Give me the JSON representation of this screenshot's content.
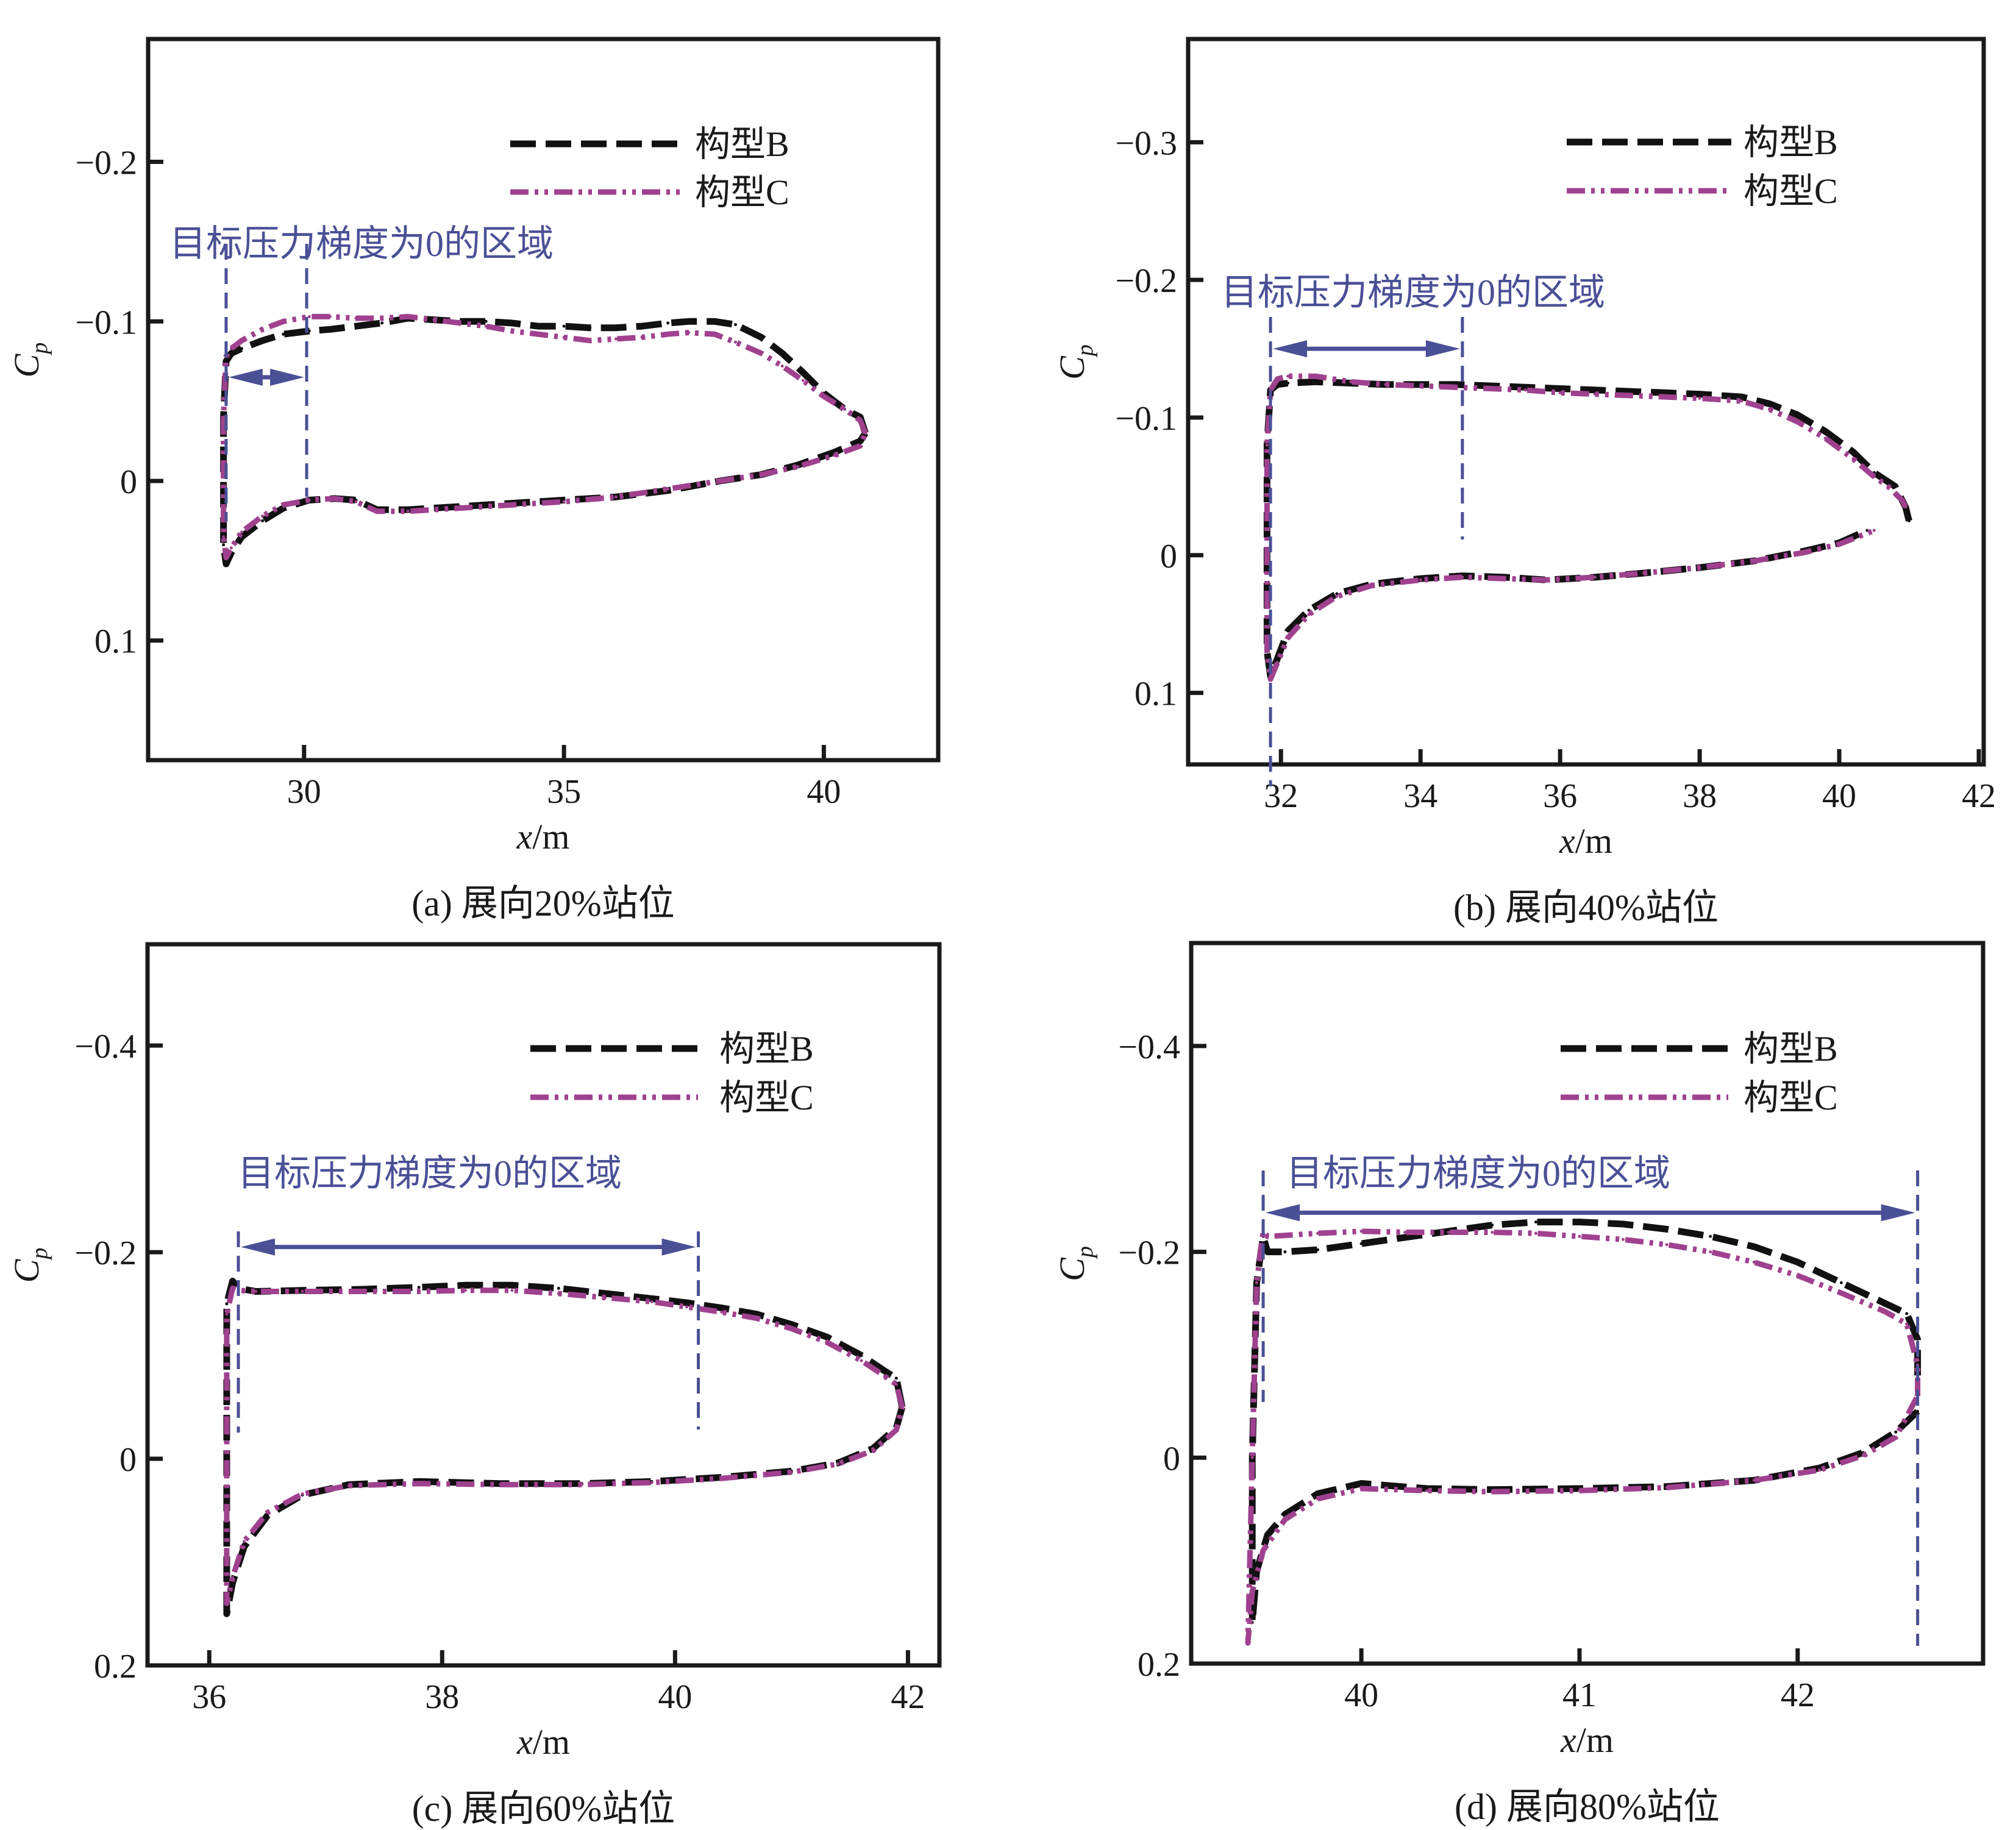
{
  "figure_title": "",
  "legend": {
    "series_b": "构型B",
    "series_c": "构型C"
  },
  "colors": {
    "series_b": "#111111",
    "series_c": "#a0418f",
    "annotation": "#4a5096",
    "axis": "#1a1a1a"
  },
  "chart_data": [
    {
      "type": "line",
      "panel": "a",
      "caption": "(a) 展向20%站位",
      "xlabel": "x/m",
      "ylabel": "Cp",
      "xlim": [
        27.0,
        42.2
      ],
      "ylim": [
        0.175,
        -0.277
      ],
      "y_inverted": true,
      "xticks": [
        30,
        35,
        40
      ],
      "xtick_labels": [
        "30",
        "35",
        "40"
      ],
      "yticks": [
        -0.2,
        -0.1,
        0,
        0.1
      ],
      "ytick_labels": [
        "−0.2",
        "−0.1",
        "0",
        "0.1"
      ],
      "legend_position": "top-right",
      "grid": false,
      "annotation": {
        "text": "目标压力梯度为0的区域",
        "x_start": 28.5,
        "x_end": 30.05,
        "arrow_cp": -0.065
      },
      "series": [
        {
          "name": "构型B",
          "style": "dashed",
          "x": [
            40.8,
            40.7,
            40.4,
            40.0,
            39.6,
            39.2,
            38.8,
            38.3,
            37.9,
            37.4,
            37.0,
            36.5,
            36.0,
            35.5,
            35.0,
            34.5,
            34.0,
            33.5,
            33.0,
            32.5,
            32.0,
            31.5,
            31.0,
            30.5,
            30.1,
            29.6,
            29.2,
            28.8,
            28.6,
            28.5,
            28.45,
            28.45,
            28.5,
            28.6,
            28.8,
            29.2,
            29.6,
            30.1,
            30.6,
            31.0,
            31.4,
            32.0,
            33.0,
            34.0,
            35.0,
            36.0,
            37.0,
            38.0,
            38.8,
            39.5,
            40.2,
            40.7,
            40.8
          ],
          "y": [
            -0.03,
            -0.04,
            -0.045,
            -0.055,
            -0.068,
            -0.08,
            -0.09,
            -0.098,
            -0.1,
            -0.1,
            -0.099,
            -0.097,
            -0.096,
            -0.096,
            -0.097,
            -0.097,
            -0.099,
            -0.1,
            -0.1,
            -0.101,
            -0.102,
            -0.099,
            -0.097,
            -0.095,
            -0.094,
            -0.092,
            -0.088,
            -0.083,
            -0.08,
            -0.075,
            -0.04,
            0.04,
            0.052,
            0.045,
            0.035,
            0.025,
            0.017,
            0.012,
            0.011,
            0.012,
            0.018,
            0.018,
            0.016,
            0.014,
            0.012,
            0.01,
            0.006,
            0.0,
            -0.004,
            -0.01,
            -0.018,
            -0.025,
            -0.03
          ]
        },
        {
          "name": "构型C",
          "style": "dash-dot-dot",
          "x": [
            40.8,
            40.7,
            40.4,
            40.0,
            39.6,
            39.2,
            38.8,
            38.3,
            37.9,
            37.4,
            37.0,
            36.5,
            36.0,
            35.5,
            35.0,
            34.5,
            34.0,
            33.5,
            33.0,
            32.5,
            32.0,
            31.5,
            31.0,
            30.5,
            30.1,
            29.6,
            29.2,
            28.8,
            28.6,
            28.5,
            28.45,
            28.45,
            28.5,
            28.6,
            28.8,
            29.2,
            29.6,
            30.1,
            30.6,
            31.0,
            31.4,
            32.0,
            33.0,
            34.0,
            35.0,
            36.0,
            37.0,
            38.0,
            38.8,
            39.5,
            40.2,
            40.7,
            40.8
          ],
          "y": [
            -0.03,
            -0.038,
            -0.045,
            -0.053,
            -0.063,
            -0.072,
            -0.08,
            -0.087,
            -0.092,
            -0.093,
            -0.092,
            -0.09,
            -0.089,
            -0.088,
            -0.09,
            -0.092,
            -0.094,
            -0.097,
            -0.099,
            -0.101,
            -0.103,
            -0.102,
            -0.102,
            -0.103,
            -0.103,
            -0.1,
            -0.095,
            -0.088,
            -0.083,
            -0.078,
            -0.04,
            0.035,
            0.048,
            0.042,
            0.032,
            0.022,
            0.015,
            0.012,
            0.011,
            0.013,
            0.019,
            0.019,
            0.017,
            0.015,
            0.013,
            0.01,
            0.005,
            0.0,
            -0.004,
            -0.009,
            -0.016,
            -0.022,
            -0.03
          ]
        }
      ]
    },
    {
      "type": "line",
      "panel": "b",
      "caption": "(b) 展向40%站位",
      "xlabel": "x/m",
      "ylabel": "Cp",
      "xlim": [
        30.67,
        42.07
      ],
      "ylim": [
        0.152,
        -0.375
      ],
      "y_inverted": true,
      "xticks": [
        32,
        34,
        36,
        38,
        40,
        42
      ],
      "xtick_labels": [
        "32",
        "34",
        "36",
        "38",
        "40",
        "42"
      ],
      "yticks": [
        -0.3,
        -0.2,
        -0.1,
        0,
        0.1
      ],
      "ytick_labels": [
        "−0.3",
        "−0.2",
        "−0.1",
        "0",
        "0.1"
      ],
      "legend_position": "top-right",
      "grid": false,
      "annotation": {
        "text": "目标压力梯度为0的区域",
        "x_start": 31.85,
        "x_end": 34.6,
        "arrow_cp": -0.15
      },
      "series": [
        {
          "name": "构型B",
          "style": "dashed",
          "x": [
            41.0,
            40.95,
            40.8,
            40.5,
            40.2,
            39.8,
            39.4,
            39.0,
            38.6,
            38.0,
            37.5,
            37.0,
            36.5,
            36.0,
            35.5,
            35.0,
            34.5,
            34.0,
            33.5,
            33.0,
            32.5,
            32.1,
            31.95,
            31.85,
            31.8,
            31.8,
            31.85,
            31.95,
            32.1,
            32.4,
            32.8,
            33.3,
            34.0,
            34.6,
            35.2,
            35.8,
            36.5,
            37.2,
            38.0,
            38.8,
            39.5,
            40.0,
            40.4
          ],
          "y": [
            -0.025,
            -0.035,
            -0.05,
            -0.06,
            -0.075,
            -0.09,
            -0.102,
            -0.11,
            -0.115,
            -0.117,
            -0.118,
            -0.119,
            -0.12,
            -0.121,
            -0.122,
            -0.123,
            -0.124,
            -0.124,
            -0.124,
            -0.125,
            -0.126,
            -0.125,
            -0.124,
            -0.12,
            -0.08,
            0.07,
            0.088,
            0.075,
            0.055,
            0.04,
            0.028,
            0.021,
            0.017,
            0.015,
            0.016,
            0.018,
            0.016,
            0.013,
            0.009,
            0.004,
            -0.003,
            -0.009,
            -0.018
          ]
        },
        {
          "name": "构型C",
          "style": "dash-dot-dot",
          "x": [
            40.95,
            40.9,
            40.7,
            40.5,
            40.2,
            39.8,
            39.4,
            39.0,
            38.6,
            38.0,
            37.5,
            37.0,
            36.5,
            36.0,
            35.5,
            35.0,
            34.5,
            34.0,
            33.5,
            33.0,
            32.5,
            32.1,
            31.95,
            31.85,
            31.8,
            31.8,
            31.85,
            31.95,
            32.1,
            32.4,
            32.8,
            33.3,
            34.0,
            34.6,
            35.2,
            35.8,
            36.5,
            37.2,
            38.0,
            38.8,
            39.5,
            40.0,
            40.5
          ],
          "y": [
            -0.035,
            -0.04,
            -0.05,
            -0.057,
            -0.07,
            -0.085,
            -0.097,
            -0.106,
            -0.112,
            -0.114,
            -0.115,
            -0.116,
            -0.117,
            -0.118,
            -0.12,
            -0.121,
            -0.122,
            -0.123,
            -0.124,
            -0.126,
            -0.13,
            -0.13,
            -0.128,
            -0.12,
            -0.08,
            0.07,
            0.09,
            0.078,
            0.06,
            0.043,
            0.03,
            0.022,
            0.018,
            0.016,
            0.017,
            0.018,
            0.016,
            0.013,
            0.009,
            0.004,
            -0.002,
            -0.008,
            -0.018
          ]
        }
      ]
    },
    {
      "type": "line",
      "panel": "c",
      "caption": "(c) 展向60%站位",
      "xlabel": "x/m",
      "ylabel": "Cp",
      "xlim": [
        35.47,
        42.27
      ],
      "ylim": [
        0.2,
        -0.498
      ],
      "y_inverted": true,
      "xticks": [
        36,
        38,
        40,
        42
      ],
      "xtick_labels": [
        "36",
        "38",
        "40",
        "42"
      ],
      "yticks": [
        -0.4,
        -0.2,
        0,
        0.2
      ],
      "ytick_labels": [
        "−0.4",
        "−0.2",
        "0",
        "0.2"
      ],
      "legend_position": "top-right",
      "grid": false,
      "annotation": {
        "text": "目标压力梯度为0的区域",
        "x_start": 36.25,
        "x_end": 40.2,
        "arrow_cp": -0.205
      },
      "series": [
        {
          "name": "构型B",
          "style": "dashed",
          "x": [
            41.95,
            41.9,
            41.8,
            41.6,
            41.3,
            41.0,
            40.7,
            40.4,
            40.1,
            39.8,
            39.4,
            39.0,
            38.6,
            38.2,
            37.8,
            37.3,
            36.8,
            36.4,
            36.25,
            36.2,
            36.15,
            36.15,
            36.2,
            36.3,
            36.5,
            36.8,
            37.2,
            37.8,
            38.5,
            39.2,
            39.8,
            40.4,
            41.0,
            41.4,
            41.7,
            41.9,
            41.95
          ],
          "y": [
            -0.05,
            -0.078,
            -0.085,
            -0.1,
            -0.118,
            -0.13,
            -0.14,
            -0.146,
            -0.151,
            -0.155,
            -0.16,
            -0.165,
            -0.168,
            -0.168,
            -0.166,
            -0.164,
            -0.163,
            -0.162,
            -0.165,
            -0.172,
            -0.15,
            0.15,
            0.12,
            0.085,
            0.055,
            0.035,
            0.025,
            0.022,
            0.024,
            0.024,
            0.022,
            0.018,
            0.012,
            0.004,
            -0.01,
            -0.03,
            -0.05
          ]
        },
        {
          "name": "构型C",
          "style": "dash-dot-dot",
          "x": [
            41.95,
            41.9,
            41.8,
            41.6,
            41.3,
            41.0,
            40.7,
            40.4,
            40.1,
            39.8,
            39.4,
            39.0,
            38.6,
            38.2,
            37.8,
            37.3,
            36.8,
            36.4,
            36.25,
            36.2,
            36.15,
            36.15,
            36.2,
            36.3,
            36.5,
            36.8,
            37.2,
            37.8,
            38.5,
            39.2,
            39.8,
            40.4,
            41.0,
            41.4,
            41.7,
            41.9,
            41.95
          ],
          "y": [
            -0.05,
            -0.072,
            -0.08,
            -0.095,
            -0.113,
            -0.126,
            -0.136,
            -0.142,
            -0.147,
            -0.152,
            -0.156,
            -0.16,
            -0.163,
            -0.163,
            -0.162,
            -0.162,
            -0.162,
            -0.162,
            -0.163,
            -0.165,
            -0.14,
            0.14,
            0.115,
            0.08,
            0.052,
            0.034,
            0.026,
            0.024,
            0.025,
            0.025,
            0.023,
            0.019,
            0.013,
            0.005,
            -0.008,
            -0.028,
            -0.05
          ]
        }
      ]
    },
    {
      "type": "line",
      "panel": "d",
      "caption": "(d) 展向80%站位",
      "xlabel": "x/m",
      "ylabel": "Cp",
      "xlim": [
        39.22,
        42.85
      ],
      "ylim": [
        0.2,
        -0.5
      ],
      "y_inverted": true,
      "xticks": [
        40,
        41,
        42
      ],
      "xtick_labels": [
        "40",
        "41",
        "42"
      ],
      "yticks": [
        -0.4,
        -0.2,
        0,
        0.2
      ],
      "ytick_labels": [
        "−0.4",
        "−0.2",
        "0",
        "0.2"
      ],
      "legend_position": "top-right",
      "grid": false,
      "annotation": {
        "text": "目标压力梯度为0的区域",
        "x_start": 39.55,
        "x_end": 42.55,
        "arrow_cp": -0.238
      },
      "series": [
        {
          "name": "构型B",
          "style": "dashed",
          "x": [
            42.55,
            42.55,
            42.5,
            42.4,
            42.2,
            42.0,
            41.8,
            41.6,
            41.4,
            41.2,
            41.0,
            40.8,
            40.6,
            40.4,
            40.2,
            40.0,
            39.8,
            39.65,
            39.57,
            39.55,
            39.52,
            39.5,
            39.5,
            39.52,
            39.57,
            39.65,
            39.8,
            40.0,
            40.3,
            40.6,
            41.0,
            41.4,
            41.8,
            42.1,
            42.3,
            42.45,
            42.55
          ],
          "y": [
            -0.08,
            -0.115,
            -0.14,
            -0.15,
            -0.17,
            -0.19,
            -0.205,
            -0.215,
            -0.222,
            -0.227,
            -0.229,
            -0.229,
            -0.226,
            -0.22,
            -0.214,
            -0.208,
            -0.202,
            -0.2,
            -0.2,
            -0.215,
            -0.17,
            0.0,
            0.16,
            0.11,
            0.075,
            0.055,
            0.035,
            0.025,
            0.03,
            0.031,
            0.03,
            0.028,
            0.022,
            0.01,
            -0.005,
            -0.025,
            -0.045
          ]
        },
        {
          "name": "构型C",
          "style": "dash-dot-dot",
          "x": [
            42.55,
            42.55,
            42.5,
            42.4,
            42.2,
            42.0,
            41.8,
            41.6,
            41.4,
            41.2,
            41.0,
            40.8,
            40.6,
            40.4,
            40.2,
            40.0,
            39.8,
            39.65,
            39.57,
            39.55,
            39.52,
            39.5,
            39.48,
            39.5,
            39.55,
            39.65,
            39.8,
            40.0,
            40.3,
            40.6,
            41.0,
            41.4,
            41.8,
            42.1,
            42.3,
            42.45,
            42.55
          ],
          "y": [
            -0.06,
            -0.09,
            -0.13,
            -0.142,
            -0.16,
            -0.177,
            -0.19,
            -0.2,
            -0.207,
            -0.212,
            -0.215,
            -0.218,
            -0.219,
            -0.219,
            -0.219,
            -0.22,
            -0.218,
            -0.216,
            -0.215,
            -0.22,
            -0.17,
            0.0,
            0.18,
            0.13,
            0.09,
            0.06,
            0.04,
            0.03,
            0.032,
            0.033,
            0.032,
            0.029,
            0.022,
            0.012,
            -0.002,
            -0.02,
            -0.06
          ]
        }
      ]
    }
  ]
}
